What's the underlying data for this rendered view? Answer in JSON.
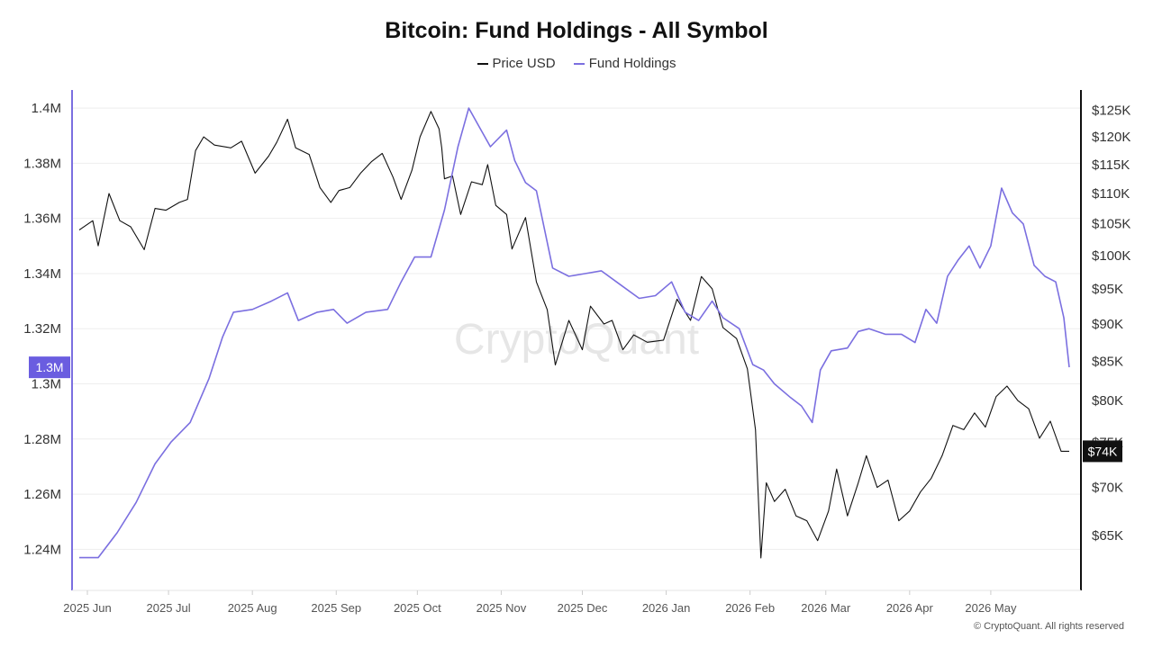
{
  "chart_data": {
    "type": "line",
    "title": "Bitcoin: Fund Holdings - All Symbol",
    "watermark": "CryptoQuant",
    "copyright": "© CryptoQuant. All rights reserved",
    "x_ticks": [
      "2025 Jun",
      "2025 Jul",
      "2025 Aug",
      "2025 Sep",
      "2025 Oct",
      "2025 Nov",
      "2025 Dec",
      "2026 Jan",
      "2026 Feb",
      "2026 Mar",
      "2026 Apr",
      "2026 May"
    ],
    "x_range": [
      "2025-05-29",
      "2026-05-31"
    ],
    "y_left": {
      "ticks": [
        "1.24M",
        "1.26M",
        "1.28M",
        "1.3M",
        "1.32M",
        "1.34M",
        "1.36M",
        "1.38M",
        "1.4M"
      ],
      "tick_values": [
        1240000,
        1260000,
        1280000,
        1300000,
        1320000,
        1340000,
        1360000,
        1380000,
        1400000
      ],
      "range": [
        1230000,
        1402000
      ],
      "scale": "linear",
      "current_label": "1.3M",
      "current_value": 1306000
    },
    "y_right": {
      "ticks": [
        "$65K",
        "$70K",
        "$75K",
        "$80K",
        "$85K",
        "$90K",
        "$95K",
        "$100K",
        "$105K",
        "$110K",
        "$115K",
        "$120K",
        "$125K"
      ],
      "tick_values": [
        65000,
        70000,
        75000,
        80000,
        85000,
        90000,
        95000,
        100000,
        105000,
        110000,
        115000,
        120000,
        125000
      ],
      "range": [
        61000,
        126500
      ],
      "scale": "log",
      "current_label": "$74K",
      "current_value": 74000
    },
    "grid": true,
    "legend_position": "top-center",
    "series": [
      {
        "name": "Price USD",
        "axis": "right",
        "color": "#111111",
        "points": [
          [
            "2025-05-29",
            104000
          ],
          [
            "2025-06-03",
            105500
          ],
          [
            "2025-06-05",
            101500
          ],
          [
            "2025-06-09",
            110000
          ],
          [
            "2025-06-13",
            105500
          ],
          [
            "2025-06-17",
            104500
          ],
          [
            "2025-06-22",
            100900
          ],
          [
            "2025-06-26",
            107500
          ],
          [
            "2025-06-30",
            107200
          ],
          [
            "2025-07-05",
            108500
          ],
          [
            "2025-07-08",
            109000
          ],
          [
            "2025-07-11",
            117500
          ],
          [
            "2025-07-14",
            120000
          ],
          [
            "2025-07-18",
            118500
          ],
          [
            "2025-07-24",
            118000
          ],
          [
            "2025-07-28",
            119200
          ],
          [
            "2025-08-02",
            113500
          ],
          [
            "2025-08-07",
            116500
          ],
          [
            "2025-08-10",
            119000
          ],
          [
            "2025-08-14",
            123300
          ],
          [
            "2025-08-17",
            118000
          ],
          [
            "2025-08-22",
            116800
          ],
          [
            "2025-08-26",
            111000
          ],
          [
            "2025-08-30",
            108500
          ],
          [
            "2025-09-02",
            110500
          ],
          [
            "2025-09-06",
            111000
          ],
          [
            "2025-09-10",
            113500
          ],
          [
            "2025-09-14",
            115500
          ],
          [
            "2025-09-18",
            117000
          ],
          [
            "2025-09-22",
            112800
          ],
          [
            "2025-09-25",
            109000
          ],
          [
            "2025-09-29",
            114000
          ],
          [
            "2025-10-02",
            120000
          ],
          [
            "2025-10-06",
            124800
          ],
          [
            "2025-10-09",
            121500
          ],
          [
            "2025-10-10",
            118000
          ],
          [
            "2025-10-11",
            112500
          ],
          [
            "2025-10-14",
            113000
          ],
          [
            "2025-10-17",
            106500
          ],
          [
            "2025-10-21",
            112000
          ],
          [
            "2025-10-25",
            111500
          ],
          [
            "2025-10-27",
            115000
          ],
          [
            "2025-10-30",
            108000
          ],
          [
            "2025-11-03",
            106500
          ],
          [
            "2025-11-05",
            101000
          ],
          [
            "2025-11-10",
            106000
          ],
          [
            "2025-11-14",
            96000
          ],
          [
            "2025-11-18",
            92000
          ],
          [
            "2025-11-21",
            84500
          ],
          [
            "2025-11-26",
            90500
          ],
          [
            "2025-12-01",
            86500
          ],
          [
            "2025-12-04",
            92500
          ],
          [
            "2025-12-09",
            90000
          ],
          [
            "2025-12-12",
            90500
          ],
          [
            "2025-12-16",
            86500
          ],
          [
            "2025-12-20",
            88500
          ],
          [
            "2025-12-25",
            87500
          ],
          [
            "2025-12-31",
            87800
          ],
          [
            "2026-01-05",
            93500
          ],
          [
            "2026-01-10",
            90500
          ],
          [
            "2026-01-14",
            96800
          ],
          [
            "2026-01-18",
            95000
          ],
          [
            "2026-01-22",
            89500
          ],
          [
            "2026-01-27",
            88000
          ],
          [
            "2026-01-31",
            84000
          ],
          [
            "2026-02-03",
            76500
          ],
          [
            "2026-02-05",
            62800
          ],
          [
            "2026-02-07",
            70500
          ],
          [
            "2026-02-10",
            68500
          ],
          [
            "2026-02-14",
            69800
          ],
          [
            "2026-02-18",
            67000
          ],
          [
            "2026-02-22",
            66500
          ],
          [
            "2026-02-26",
            64500
          ],
          [
            "2026-03-02",
            67500
          ],
          [
            "2026-03-05",
            72000
          ],
          [
            "2026-03-09",
            67000
          ],
          [
            "2026-03-13",
            70500
          ],
          [
            "2026-03-16",
            73500
          ],
          [
            "2026-03-20",
            70000
          ],
          [
            "2026-03-24",
            70800
          ],
          [
            "2026-03-28",
            66500
          ],
          [
            "2026-04-01",
            67500
          ],
          [
            "2026-04-05",
            69500
          ],
          [
            "2026-04-09",
            71000
          ],
          [
            "2026-04-13",
            73500
          ],
          [
            "2026-04-17",
            77000
          ],
          [
            "2026-04-21",
            76500
          ],
          [
            "2026-04-25",
            78500
          ],
          [
            "2026-04-29",
            76800
          ],
          [
            "2026-05-03",
            80500
          ],
          [
            "2026-05-07",
            81800
          ],
          [
            "2026-05-11",
            80000
          ],
          [
            "2026-05-15",
            79000
          ],
          [
            "2026-05-19",
            75500
          ],
          [
            "2026-05-23",
            77500
          ],
          [
            "2026-05-27",
            74000
          ],
          [
            "2026-05-30",
            74000
          ]
        ]
      },
      {
        "name": "Fund Holdings",
        "axis": "left",
        "color": "#7b6fe0",
        "points": [
          [
            "2025-05-29",
            1237000
          ],
          [
            "2025-06-05",
            1237000
          ],
          [
            "2025-06-12",
            1246000
          ],
          [
            "2025-06-19",
            1257000
          ],
          [
            "2025-06-26",
            1271000
          ],
          [
            "2025-07-02",
            1279000
          ],
          [
            "2025-07-09",
            1286000
          ],
          [
            "2025-07-16",
            1302000
          ],
          [
            "2025-07-21",
            1317000
          ],
          [
            "2025-07-25",
            1326000
          ],
          [
            "2025-08-01",
            1327000
          ],
          [
            "2025-08-08",
            1330000
          ],
          [
            "2025-08-14",
            1333000
          ],
          [
            "2025-08-18",
            1323000
          ],
          [
            "2025-08-25",
            1326000
          ],
          [
            "2025-08-31",
            1327000
          ],
          [
            "2025-09-05",
            1322000
          ],
          [
            "2025-09-12",
            1326000
          ],
          [
            "2025-09-20",
            1327000
          ],
          [
            "2025-09-25",
            1337000
          ],
          [
            "2025-09-30",
            1346000
          ],
          [
            "2025-10-06",
            1346000
          ],
          [
            "2025-10-11",
            1363000
          ],
          [
            "2025-10-16",
            1386000
          ],
          [
            "2025-10-20",
            1400000
          ],
          [
            "2025-10-24",
            1393000
          ],
          [
            "2025-10-28",
            1386000
          ],
          [
            "2025-11-03",
            1392000
          ],
          [
            "2025-11-06",
            1381000
          ],
          [
            "2025-11-10",
            1373000
          ],
          [
            "2025-11-14",
            1370000
          ],
          [
            "2025-11-20",
            1342000
          ],
          [
            "2025-11-26",
            1339000
          ],
          [
            "2025-12-02",
            1340000
          ],
          [
            "2025-12-08",
            1341000
          ],
          [
            "2025-12-15",
            1336000
          ],
          [
            "2025-12-22",
            1331000
          ],
          [
            "2025-12-28",
            1332000
          ],
          [
            "2026-01-03",
            1337000
          ],
          [
            "2026-01-08",
            1326000
          ],
          [
            "2026-01-13",
            1323000
          ],
          [
            "2026-01-18",
            1330000
          ],
          [
            "2026-01-22",
            1324000
          ],
          [
            "2026-01-28",
            1320000
          ],
          [
            "2026-02-02",
            1307000
          ],
          [
            "2026-02-06",
            1305000
          ],
          [
            "2026-02-10",
            1300000
          ],
          [
            "2026-02-16",
            1295000
          ],
          [
            "2026-02-20",
            1292000
          ],
          [
            "2026-02-24",
            1286000
          ],
          [
            "2026-02-27",
            1305000
          ],
          [
            "2026-03-03",
            1312000
          ],
          [
            "2026-03-09",
            1313000
          ],
          [
            "2026-03-13",
            1319000
          ],
          [
            "2026-03-17",
            1320000
          ],
          [
            "2026-03-23",
            1318000
          ],
          [
            "2026-03-29",
            1318000
          ],
          [
            "2026-04-03",
            1315000
          ],
          [
            "2026-04-07",
            1327000
          ],
          [
            "2026-04-11",
            1322000
          ],
          [
            "2026-04-15",
            1339000
          ],
          [
            "2026-04-19",
            1345000
          ],
          [
            "2026-04-23",
            1350000
          ],
          [
            "2026-04-27",
            1342000
          ],
          [
            "2026-05-01",
            1350000
          ],
          [
            "2026-05-05",
            1371000
          ],
          [
            "2026-05-09",
            1362000
          ],
          [
            "2026-05-13",
            1358000
          ],
          [
            "2026-05-17",
            1343000
          ],
          [
            "2026-05-21",
            1339000
          ],
          [
            "2026-05-25",
            1337000
          ],
          [
            "2026-05-28",
            1324000
          ],
          [
            "2026-05-30",
            1306000
          ]
        ]
      }
    ]
  }
}
